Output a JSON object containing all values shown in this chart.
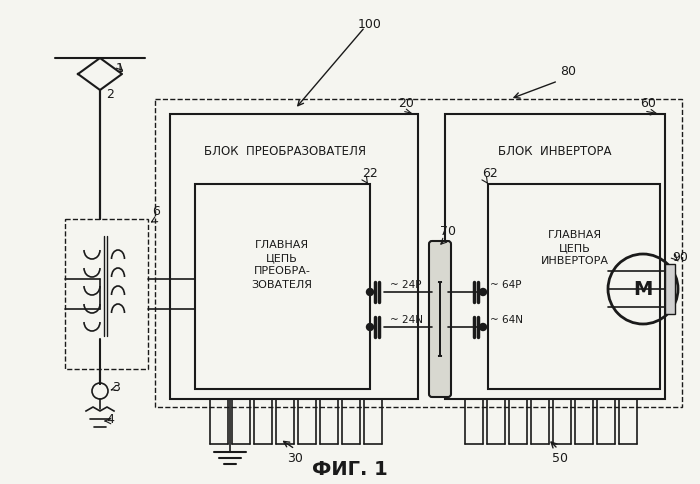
{
  "title": "ФИГ. 1",
  "bg_color": "#f5f5f0",
  "line_color": "#1a1a1a",
  "block_converter_label": "БЛОК  ПРЕОБРАЗОВАТЕЛЯ",
  "block_inverter_label": "БЛОК  ИНВЕРТОРА",
  "main_circuit_conv": "ГЛАВНАЯ\nЦЕПЬ\nПРЕОБРА-\nЗОВАТЕЛЯ",
  "main_circuit_inv": "ГЛАВНАЯ\nЦЕПЬ\nИНВЕРТОРА",
  "cap_24P": "~ 24P",
  "cap_24N": "~ 24N",
  "cap_64P": "~ 64P",
  "cap_64N": "~ 64N",
  "motor_label": "M",
  "fig_label": "ФИГ. 1"
}
